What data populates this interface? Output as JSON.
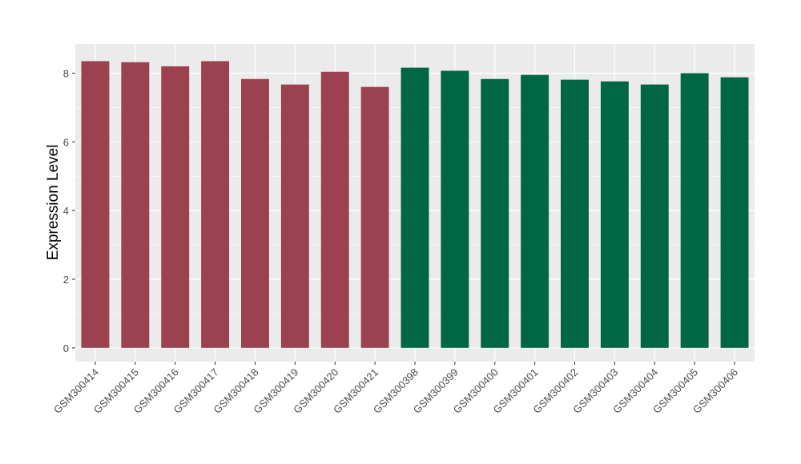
{
  "chart_data": {
    "type": "bar",
    "title": "",
    "xlabel": "",
    "ylabel": "Expression Level",
    "ylim": [
      -0.4,
      8.85
    ],
    "yticks": [
      0,
      2,
      4,
      6,
      8
    ],
    "grid": true,
    "categories": [
      "GSM300414",
      "GSM300415",
      "GSM300416",
      "GSM300417",
      "GSM300418",
      "GSM300419",
      "GSM300420",
      "GSM300421",
      "GSM300398",
      "GSM300399",
      "GSM300400",
      "GSM300401",
      "GSM300402",
      "GSM300403",
      "GSM300404",
      "GSM300405",
      "GSM300406"
    ],
    "values": [
      8.35,
      8.32,
      8.2,
      8.35,
      7.83,
      7.67,
      8.04,
      7.6,
      8.16,
      8.07,
      7.83,
      7.95,
      7.81,
      7.76,
      7.67,
      8.0,
      7.88
    ],
    "groups": [
      0,
      0,
      0,
      0,
      0,
      0,
      0,
      0,
      1,
      1,
      1,
      1,
      1,
      1,
      1,
      1,
      1
    ],
    "colors": [
      "#9b4150",
      "#006644"
    ],
    "panel_background": "#ebebeb"
  }
}
